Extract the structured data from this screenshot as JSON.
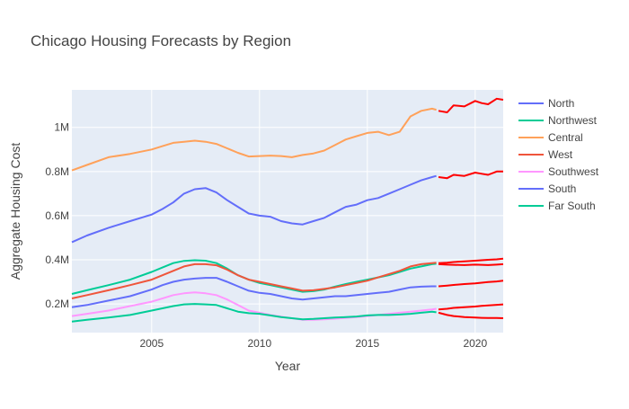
{
  "chart_data": {
    "type": "line",
    "title": "Chicago Housing Forecasts by Region",
    "xlabel": "Year",
    "ylabel": "Aggregate Housing Cost",
    "xlim": [
      2001.3,
      2021.3
    ],
    "ylim": [
      70000,
      1170000
    ],
    "x_ticks": [
      2005,
      2010,
      2015,
      2020
    ],
    "x_tick_labels": [
      "2005",
      "2010",
      "2015",
      "2020"
    ],
    "y_ticks": [
      200000,
      400000,
      600000,
      800000,
      1000000
    ],
    "y_tick_labels": [
      "0.2M",
      "0.4M",
      "0.6M",
      "0.8M",
      "1M"
    ],
    "grid": true,
    "legend_position": "right",
    "series": [
      {
        "name": "North",
        "color": "#636efa",
        "x": [
          2001.3,
          2002,
          2003,
          2004,
          2005,
          2005.5,
          2006,
          2006.5,
          2007,
          2007.5,
          2008,
          2008.5,
          2009,
          2009.5,
          2010,
          2010.5,
          2011,
          2011.5,
          2012,
          2012.5,
          2013,
          2013.5,
          2014,
          2014.5,
          2015,
          2015.5,
          2016,
          2016.5,
          2017,
          2017.5,
          2018,
          2018.2
        ],
        "y": [
          480000,
          510000,
          545000,
          575000,
          605000,
          630000,
          660000,
          700000,
          720000,
          725000,
          705000,
          670000,
          640000,
          610000,
          600000,
          595000,
          575000,
          565000,
          560000,
          575000,
          590000,
          615000,
          640000,
          650000,
          670000,
          680000,
          700000,
          720000,
          740000,
          760000,
          775000,
          780000
        ]
      },
      {
        "name": "Northwest",
        "color": "#00cc96",
        "x": [
          2001.3,
          2002,
          2003,
          2004,
          2005,
          2005.5,
          2006,
          2006.5,
          2007,
          2007.5,
          2008,
          2008.5,
          2009,
          2009.5,
          2010,
          2010.5,
          2011,
          2011.5,
          2012,
          2012.5,
          2013,
          2013.5,
          2014,
          2014.5,
          2015,
          2015.5,
          2016,
          2016.5,
          2017,
          2017.5,
          2018,
          2018.2
        ],
        "y": [
          245000,
          262000,
          285000,
          310000,
          345000,
          365000,
          385000,
          395000,
          398000,
          396000,
          385000,
          360000,
          330000,
          310000,
          295000,
          285000,
          275000,
          265000,
          255000,
          258000,
          265000,
          278000,
          290000,
          300000,
          310000,
          320000,
          330000,
          345000,
          360000,
          370000,
          380000,
          382000
        ]
      },
      {
        "name": "Central",
        "color": "#ffa15a",
        "x": [
          2001.3,
          2002,
          2003,
          2004,
          2005,
          2005.5,
          2006,
          2006.5,
          2007,
          2007.5,
          2008,
          2008.5,
          2009,
          2009.5,
          2010,
          2010.5,
          2011,
          2011.5,
          2012,
          2012.5,
          2013,
          2013.5,
          2014,
          2014.5,
          2015,
          2015.5,
          2016,
          2016.5,
          2017,
          2017.5,
          2018,
          2018.2
        ],
        "y": [
          805000,
          830000,
          865000,
          880000,
          900000,
          915000,
          930000,
          935000,
          940000,
          935000,
          925000,
          905000,
          885000,
          868000,
          870000,
          872000,
          870000,
          865000,
          875000,
          882000,
          895000,
          920000,
          945000,
          960000,
          975000,
          980000,
          965000,
          980000,
          1050000,
          1075000,
          1085000,
          1080000
        ]
      },
      {
        "name": "West",
        "color": "#ef553b",
        "x": [
          2001.3,
          2002,
          2003,
          2004,
          2005,
          2005.5,
          2006,
          2006.5,
          2007,
          2007.5,
          2008,
          2008.5,
          2009,
          2009.5,
          2010,
          2010.5,
          2011,
          2011.5,
          2012,
          2012.5,
          2013,
          2013.5,
          2014,
          2014.5,
          2015,
          2015.5,
          2016,
          2016.5,
          2017,
          2017.5,
          2018,
          2018.2
        ],
        "y": [
          225000,
          240000,
          262000,
          285000,
          310000,
          330000,
          350000,
          370000,
          380000,
          380000,
          375000,
          355000,
          330000,
          310000,
          300000,
          290000,
          280000,
          270000,
          260000,
          262000,
          268000,
          275000,
          285000,
          295000,
          305000,
          320000,
          335000,
          350000,
          370000,
          380000,
          385000,
          387000
        ]
      },
      {
        "name": "Southwest",
        "color": "#ff97ff",
        "x": [
          2001.3,
          2002,
          2003,
          2004,
          2005,
          2005.5,
          2006,
          2006.5,
          2007,
          2007.5,
          2008,
          2008.5,
          2009,
          2009.5,
          2010,
          2010.5,
          2011,
          2011.5,
          2012,
          2012.5,
          2013,
          2013.5,
          2014,
          2014.5,
          2015,
          2015.5,
          2016,
          2016.5,
          2017,
          2017.5,
          2018,
          2018.2
        ],
        "y": [
          145000,
          155000,
          170000,
          190000,
          210000,
          225000,
          240000,
          248000,
          252000,
          248000,
          240000,
          220000,
          195000,
          170000,
          160000,
          150000,
          142000,
          135000,
          128000,
          128000,
          130000,
          133000,
          137000,
          140000,
          145000,
          150000,
          155000,
          160000,
          165000,
          170000,
          175000,
          178000
        ]
      },
      {
        "name": "South",
        "color": "#636efa",
        "x": [
          2001.3,
          2002,
          2003,
          2004,
          2005,
          2005.5,
          2006,
          2006.5,
          2007,
          2007.5,
          2008,
          2008.5,
          2009,
          2009.5,
          2010,
          2010.5,
          2011,
          2011.5,
          2012,
          2012.5,
          2013,
          2013.5,
          2014,
          2014.5,
          2015,
          2015.5,
          2016,
          2016.5,
          2017,
          2017.5,
          2018,
          2018.2
        ],
        "y": [
          185000,
          195000,
          215000,
          235000,
          265000,
          285000,
          300000,
          310000,
          315000,
          318000,
          318000,
          300000,
          280000,
          260000,
          250000,
          245000,
          235000,
          225000,
          220000,
          225000,
          230000,
          235000,
          235000,
          240000,
          245000,
          250000,
          255000,
          265000,
          275000,
          278000,
          280000,
          280000
        ]
      },
      {
        "name": "Far South",
        "color": "#00cc96",
        "x": [
          2001.3,
          2002,
          2003,
          2004,
          2005,
          2005.5,
          2006,
          2006.5,
          2007,
          2007.5,
          2008,
          2008.5,
          2009,
          2009.5,
          2010,
          2010.5,
          2011,
          2011.5,
          2012,
          2012.5,
          2013,
          2013.5,
          2014,
          2014.5,
          2015,
          2015.5,
          2016,
          2016.5,
          2017,
          2017.5,
          2018,
          2018.2
        ],
        "y": [
          120000,
          128000,
          138000,
          150000,
          170000,
          180000,
          190000,
          198000,
          200000,
          198000,
          195000,
          180000,
          165000,
          158000,
          155000,
          148000,
          140000,
          135000,
          130000,
          132000,
          135000,
          138000,
          140000,
          143000,
          148000,
          150000,
          150000,
          152000,
          155000,
          160000,
          165000,
          162000
        ]
      }
    ],
    "forecast": {
      "color": "#ff0000",
      "x": [
        2018.3,
        2018.7,
        2019,
        2019.5,
        2020,
        2020.3,
        2020.6,
        2021,
        2021.3
      ],
      "lines": [
        [
          1075000,
          1068000,
          1100000,
          1095000,
          1120000,
          1110000,
          1105000,
          1130000,
          1125000
        ],
        [
          775000,
          770000,
          785000,
          780000,
          795000,
          790000,
          785000,
          800000,
          800000
        ],
        [
          385000,
          387000,
          390000,
          393000,
          396000,
          398000,
          400000,
          402000,
          405000
        ],
        [
          380000,
          378000,
          377000,
          376000,
          378000,
          377000,
          376000,
          378000,
          380000
        ],
        [
          280000,
          283000,
          286000,
          290000,
          293000,
          296000,
          299000,
          302000,
          305000
        ],
        [
          175000,
          178000,
          182000,
          185000,
          188000,
          191000,
          193000,
          196000,
          198000
        ],
        [
          160000,
          150000,
          145000,
          140000,
          138000,
          137000,
          136000,
          136000,
          135000
        ]
      ]
    }
  }
}
